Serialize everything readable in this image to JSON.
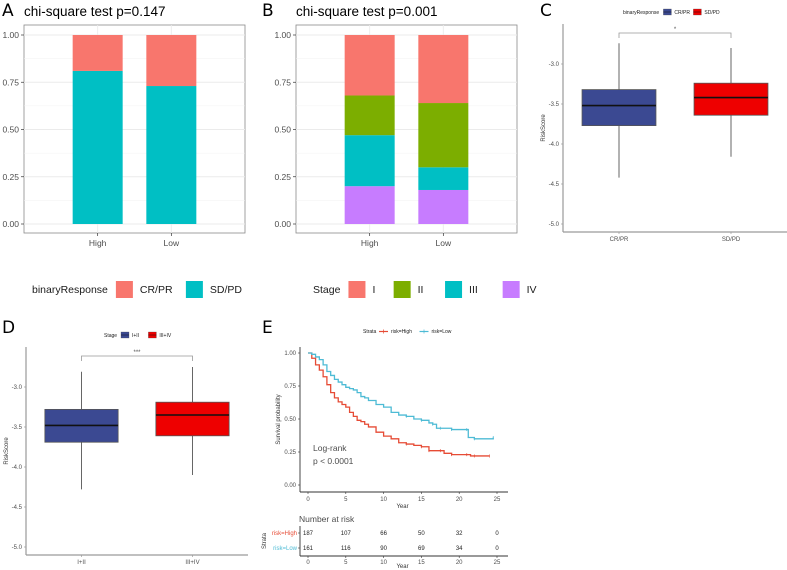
{
  "panels": {
    "A": {
      "letter": "A"
    },
    "B": {
      "letter": "B"
    },
    "C": {
      "letter": "C"
    },
    "D": {
      "letter": "D"
    },
    "E": {
      "letter": "E"
    }
  },
  "chart_data": [
    {
      "id": "A",
      "type": "bar",
      "stacked": true,
      "title": "chi-square test p=0.147",
      "categories": [
        "High",
        "Low"
      ],
      "series": [
        {
          "name": "SD/PD",
          "color": "#00BFC4",
          "values": [
            0.81,
            0.73
          ]
        },
        {
          "name": "CR/PR",
          "color": "#F8766D",
          "values": [
            0.19,
            0.27
          ]
        }
      ],
      "ylim": [
        0,
        1
      ],
      "yticks": [
        "0.00",
        "0.25",
        "0.50",
        "0.75",
        "1.00"
      ],
      "xlabel": "",
      "ylabel": "",
      "grid": true,
      "legend": {
        "title": "binaryResponse",
        "position": "bottom",
        "entries": [
          {
            "label": "CR/PR",
            "color": "#F8766D"
          },
          {
            "label": "SD/PD",
            "color": "#00BFC4"
          }
        ]
      }
    },
    {
      "id": "B",
      "type": "bar",
      "stacked": true,
      "title": "chi-square test p=0.001",
      "categories": [
        "High",
        "Low"
      ],
      "series": [
        {
          "name": "IV",
          "color": "#C77CFF",
          "values": [
            0.2,
            0.18
          ]
        },
        {
          "name": "III",
          "color": "#00BFC4",
          "values": [
            0.27,
            0.12
          ]
        },
        {
          "name": "II",
          "color": "#7CAE00",
          "values": [
            0.21,
            0.34
          ]
        },
        {
          "name": "I",
          "color": "#F8766D",
          "values": [
            0.32,
            0.36
          ]
        }
      ],
      "ylim": [
        0,
        1
      ],
      "yticks": [
        "0.00",
        "0.25",
        "0.50",
        "0.75",
        "1.00"
      ],
      "xlabel": "",
      "ylabel": "",
      "grid": true,
      "legend": {
        "title": "Stage",
        "position": "bottom",
        "entries": [
          {
            "label": "I",
            "color": "#F8766D"
          },
          {
            "label": "II",
            "color": "#7CAE00"
          },
          {
            "label": "III",
            "color": "#00BFC4"
          },
          {
            "label": "IV",
            "color": "#C77CFF"
          }
        ]
      }
    },
    {
      "id": "C",
      "type": "box",
      "title": "",
      "categories": [
        "CR/PR",
        "SD/PD"
      ],
      "boxes": [
        {
          "name": "CR/PR",
          "color": "#3B4992",
          "whisker_high": -2.74,
          "q3": -3.32,
          "median": -3.52,
          "q1": -3.77,
          "whisker_low": -4.42
        },
        {
          "name": "SD/PD",
          "color": "#EE0000",
          "whisker_high": -2.8,
          "q3": -3.24,
          "median": -3.42,
          "q1": -3.64,
          "whisker_low": -4.16
        }
      ],
      "ylabel": "RiskScore",
      "ylim": [
        -5.1,
        -2.5
      ],
      "yticks": [
        "-3.0",
        "-3.5",
        "-4.0",
        "-4.5",
        "-5.0"
      ],
      "significance": "*",
      "legend": {
        "title": "binaryResponse",
        "position": "top",
        "entries": [
          {
            "label": "CR/PR",
            "color": "#3B4992"
          },
          {
            "label": "SD/PD",
            "color": "#EE0000"
          }
        ]
      }
    },
    {
      "id": "D",
      "type": "box",
      "title": "",
      "categories": [
        "I+II",
        "III+IV"
      ],
      "boxes": [
        {
          "name": "I+II",
          "color": "#3B4992",
          "whisker_high": -2.81,
          "q3": -3.28,
          "median": -3.48,
          "q1": -3.69,
          "whisker_low": -4.28
        },
        {
          "name": "III+IV",
          "color": "#EE0000",
          "whisker_high": -2.75,
          "q3": -3.19,
          "median": -3.35,
          "q1": -3.61,
          "whisker_low": -4.1
        }
      ],
      "ylabel": "RiskScore",
      "ylim": [
        -5.1,
        -2.5
      ],
      "yticks": [
        "-3.0",
        "-3.5",
        "-4.0",
        "-4.5",
        "-5.0"
      ],
      "significance": "***",
      "legend": {
        "title": "Stage",
        "position": "top",
        "entries": [
          {
            "label": "I+II",
            "color": "#3B4992"
          },
          {
            "label": "III+IV",
            "color": "#EE0000"
          }
        ]
      }
    },
    {
      "id": "E",
      "type": "line",
      "subtype": "kaplan-meier",
      "title": "",
      "xlabel": "Year",
      "ylabel": "Survival probability",
      "xlim": [
        0,
        25
      ],
      "ylim": [
        0,
        1
      ],
      "xticks": [
        "0",
        "5",
        "10",
        "15",
        "20",
        "25"
      ],
      "yticks": [
        "0.00",
        "0.25",
        "0.50",
        "0.75",
        "1.00"
      ],
      "annotation": [
        "Log-rank",
        "p < 0.0001"
      ],
      "legend": {
        "title": "Strata",
        "position": "top",
        "entries": [
          {
            "label": "risk=High",
            "color": "#E64B35"
          },
          {
            "label": "risk=Low",
            "color": "#4DBBD5"
          }
        ]
      },
      "series": [
        {
          "name": "risk=High",
          "color": "#E64B35",
          "x": [
            0,
            0.5,
            1,
            1.5,
            2,
            2.5,
            3,
            3.5,
            4,
            4.5,
            5,
            5.5,
            6,
            6.5,
            7,
            7.5,
            8,
            9,
            10,
            11,
            12,
            13,
            14,
            15,
            15.5,
            16,
            17,
            17.5,
            18,
            19,
            20,
            21,
            21.5,
            22,
            23,
            24
          ],
          "y": [
            1.0,
            0.96,
            0.91,
            0.87,
            0.82,
            0.76,
            0.7,
            0.66,
            0.63,
            0.61,
            0.59,
            0.55,
            0.52,
            0.49,
            0.48,
            0.46,
            0.44,
            0.4,
            0.37,
            0.35,
            0.32,
            0.31,
            0.3,
            0.29,
            0.29,
            0.26,
            0.26,
            0.26,
            0.24,
            0.23,
            0.23,
            0.23,
            0.22,
            0.22,
            0.22,
            0.22
          ]
        },
        {
          "name": "risk=Low",
          "color": "#4DBBD5",
          "x": [
            0,
            0.5,
            1,
            1.5,
            2,
            2.5,
            3,
            3.5,
            4,
            4.5,
            5,
            5.5,
            6,
            6.5,
            7,
            7.5,
            8,
            9,
            10,
            11,
            12,
            13,
            14,
            15,
            16,
            16.5,
            17,
            17.5,
            18,
            19,
            20,
            21,
            21.2,
            22,
            23,
            24.5
          ],
          "y": [
            1.0,
            0.99,
            0.97,
            0.95,
            0.91,
            0.86,
            0.83,
            0.8,
            0.78,
            0.76,
            0.74,
            0.73,
            0.72,
            0.7,
            0.67,
            0.66,
            0.64,
            0.61,
            0.59,
            0.55,
            0.53,
            0.52,
            0.5,
            0.49,
            0.47,
            0.46,
            0.43,
            0.43,
            0.43,
            0.42,
            0.42,
            0.42,
            0.36,
            0.35,
            0.35,
            0.36
          ]
        }
      ],
      "risk_table": {
        "title": "Number at risk",
        "ylabel": "Strata",
        "xlabel": "Year",
        "times": [
          "0",
          "5",
          "10",
          "15",
          "20",
          "25"
        ],
        "rows": [
          {
            "label": "risk=High",
            "color": "#E64B35",
            "values": [
              "187",
              "107",
              "66",
              "50",
              "32",
              "0"
            ]
          },
          {
            "label": "risk=Low",
            "color": "#4DBBD5",
            "values": [
              "161",
              "116",
              "90",
              "69",
              "34",
              "0"
            ]
          }
        ]
      }
    }
  ]
}
